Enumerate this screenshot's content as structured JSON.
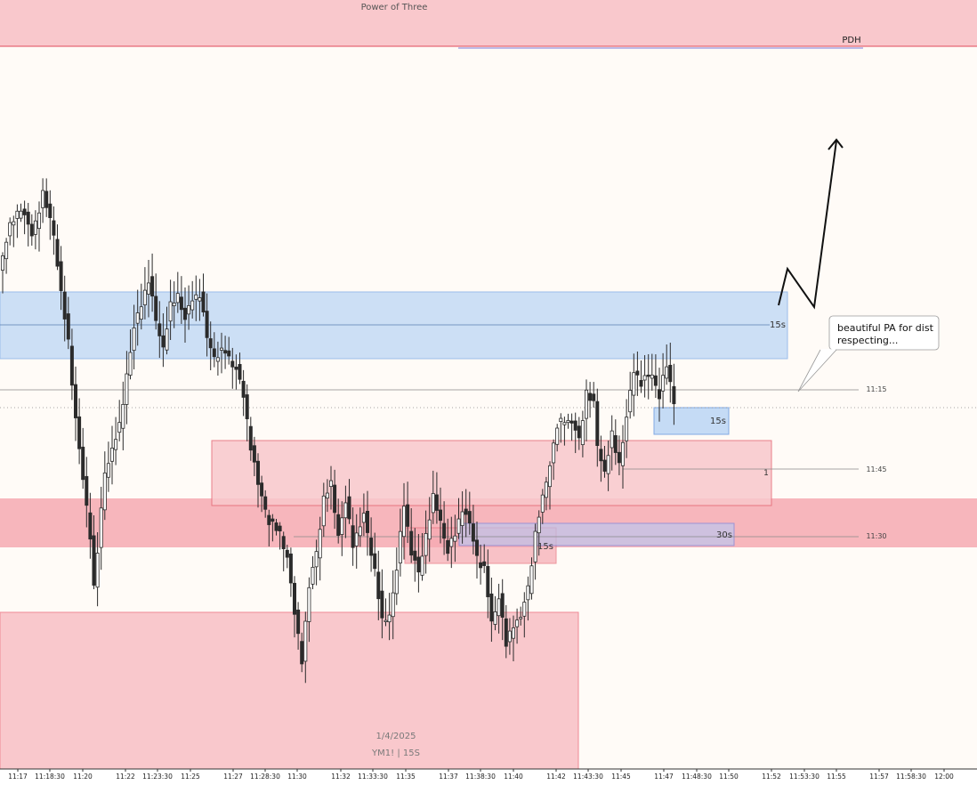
{
  "chart_data": {
    "type": "candlestick",
    "title": "Power of Three",
    "watermark": {
      "date": "1/4/2025",
      "symbol": "YM1! | 15S"
    },
    "x_axis": {
      "ticks": [
        "11:17",
        "11:18:30",
        "11:20",
        "11:22",
        "11:23:30",
        "11:25",
        "11:27",
        "11:28:30",
        "11:30",
        "11:32",
        "11:33:30",
        "11:35",
        "11:37",
        "11:38:30",
        "11:40",
        "11:42",
        "11:43:30",
        "11:45",
        "11:47",
        "11:48:30",
        "11:50",
        "11:52",
        "11:53:30",
        "11:55",
        "11:57",
        "11:58:30",
        "12:00"
      ]
    },
    "horizontal_lines": [
      {
        "label": "PDH",
        "color": "#e04a5a"
      },
      {
        "label": "11:15",
        "color": "#8a8a8a",
        "style": "solid"
      },
      {
        "label": "11:45",
        "color": "#8a8a8a",
        "style": "solid"
      },
      {
        "label": "11:30",
        "color": "#8a8a8a",
        "style": "solid"
      },
      {
        "label": "",
        "color": "#8a8a8a",
        "style": "dotted"
      }
    ],
    "zones": [
      {
        "kind": "premium-zone",
        "label": "",
        "color": "#f9c8cc"
      },
      {
        "kind": "blue-fvg",
        "label": "15s",
        "color": "#bcd6f5"
      },
      {
        "kind": "red-fvg",
        "label": "1",
        "color": "#f9c8cc"
      },
      {
        "kind": "red-band",
        "label": "",
        "color": "#f6a9b2"
      },
      {
        "kind": "blue-fvg-30s",
        "label": "30s",
        "color": "#b9c8f2"
      },
      {
        "kind": "red-fvg-15s",
        "label": "15s",
        "color": "#f6a9b2"
      },
      {
        "kind": "blue-fvg-small",
        "label": "15s",
        "color": "#bcd6f5"
      },
      {
        "kind": "discount-zone",
        "label": "",
        "color": "#f9c8cc"
      }
    ],
    "annotations": [
      {
        "type": "callout",
        "text_lines": [
          "beautiful PA for dist",
          "respecting..."
        ]
      },
      {
        "type": "projection-arrow",
        "direction": "up"
      },
      {
        "type": "label",
        "text": "1"
      }
    ],
    "colors": {
      "bull": "#ffffff",
      "bear": "#2b2b2b",
      "wick": "#2b2b2b",
      "background": "#fffbf7"
    }
  }
}
